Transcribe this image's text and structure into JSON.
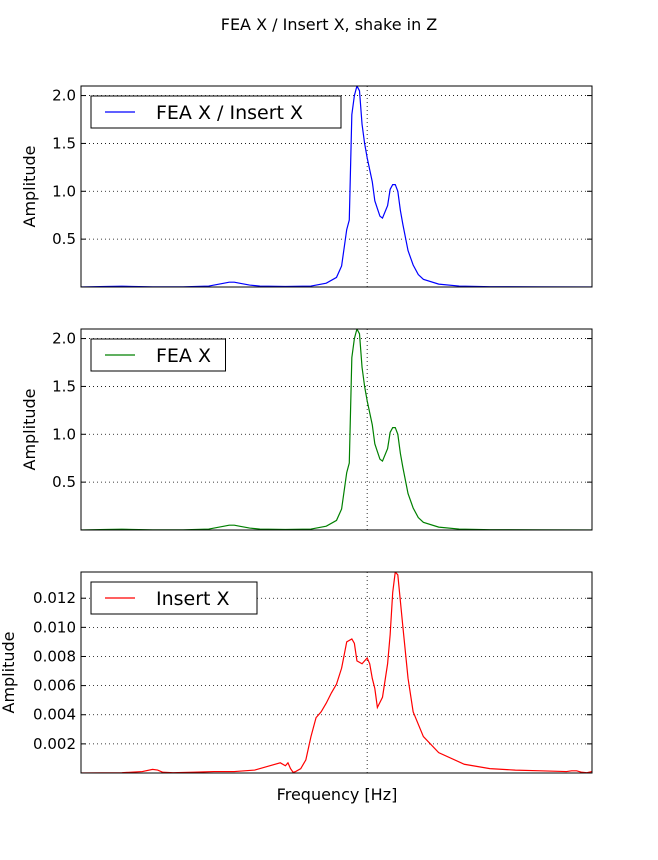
{
  "figure": {
    "title": "FEA X / Insert X, shake in Z",
    "xlabel": "Frequency [Hz]"
  },
  "chart_data": [
    {
      "type": "line",
      "ylabel": "Amplitude",
      "ylim": [
        0,
        2.1
      ],
      "xlim": [
        0,
        1
      ],
      "yticks": [
        0.5,
        1.0,
        1.5,
        2.0
      ],
      "ytick_labels": [
        "0.5",
        "1.0",
        "1.5",
        "2.0"
      ],
      "grid": true,
      "vline_x": 0.56,
      "legend": "top-left",
      "series": [
        {
          "name": "FEA X / Insert X",
          "color": "#0000ff",
          "x": [
            0,
            0.05,
            0.08,
            0.1,
            0.14,
            0.2,
            0.25,
            0.28,
            0.29,
            0.3,
            0.31,
            0.33,
            0.35,
            0.4,
            0.45,
            0.48,
            0.5,
            0.51,
            0.52,
            0.525,
            0.53,
            0.535,
            0.54,
            0.545,
            0.55,
            0.555,
            0.56,
            0.57,
            0.575,
            0.58,
            0.585,
            0.59,
            0.6,
            0.605,
            0.61,
            0.615,
            0.62,
            0.625,
            0.63,
            0.64,
            0.65,
            0.66,
            0.67,
            0.7,
            0.74,
            0.8,
            0.9,
            1.0
          ],
          "values": [
            0,
            0.005,
            0.008,
            0.005,
            0.002,
            0.002,
            0.01,
            0.04,
            0.05,
            0.05,
            0.04,
            0.02,
            0.01,
            0.005,
            0.01,
            0.04,
            0.1,
            0.22,
            0.6,
            0.7,
            1.8,
            2.0,
            2.1,
            2.05,
            1.7,
            1.5,
            1.35,
            1.1,
            0.9,
            0.82,
            0.74,
            0.72,
            0.85,
            1.02,
            1.07,
            1.07,
            1.0,
            0.8,
            0.65,
            0.38,
            0.23,
            0.13,
            0.08,
            0.03,
            0.01,
            0.003,
            0.001,
            0
          ]
        }
      ]
    },
    {
      "type": "line",
      "ylabel": "Amplitude",
      "ylim": [
        0,
        2.1
      ],
      "xlim": [
        0,
        1
      ],
      "yticks": [
        0.5,
        1.0,
        1.5,
        2.0
      ],
      "ytick_labels": [
        "0.5",
        "1.0",
        "1.5",
        "2.0"
      ],
      "grid": true,
      "vline_x": 0.56,
      "legend": "top-left",
      "series": [
        {
          "name": "FEA X",
          "color": "#008000",
          "x": [
            0,
            0.05,
            0.08,
            0.1,
            0.14,
            0.2,
            0.25,
            0.28,
            0.29,
            0.3,
            0.31,
            0.33,
            0.35,
            0.4,
            0.45,
            0.48,
            0.5,
            0.51,
            0.52,
            0.525,
            0.53,
            0.535,
            0.54,
            0.545,
            0.55,
            0.555,
            0.56,
            0.57,
            0.575,
            0.58,
            0.585,
            0.59,
            0.6,
            0.605,
            0.61,
            0.615,
            0.62,
            0.625,
            0.63,
            0.64,
            0.65,
            0.66,
            0.67,
            0.7,
            0.74,
            0.8,
            0.9,
            1.0
          ],
          "values": [
            0,
            0.005,
            0.008,
            0.005,
            0.002,
            0.002,
            0.01,
            0.04,
            0.05,
            0.05,
            0.04,
            0.02,
            0.01,
            0.005,
            0.01,
            0.04,
            0.1,
            0.22,
            0.6,
            0.7,
            1.8,
            2.0,
            2.1,
            2.05,
            1.7,
            1.5,
            1.35,
            1.1,
            0.9,
            0.82,
            0.74,
            0.72,
            0.85,
            1.02,
            1.07,
            1.07,
            1.0,
            0.8,
            0.65,
            0.38,
            0.23,
            0.13,
            0.08,
            0.03,
            0.01,
            0.003,
            0.001,
            0
          ]
        }
      ]
    },
    {
      "type": "line",
      "ylabel": "Amplitude",
      "ylim": [
        0,
        0.0138
      ],
      "xlim": [
        0,
        1
      ],
      "yticks": [
        0.002,
        0.004,
        0.006,
        0.008,
        0.01,
        0.012
      ],
      "ytick_labels": [
        "0.002",
        "0.004",
        "0.006",
        "0.008",
        "0.010",
        "0.012"
      ],
      "grid": true,
      "vline_x": 0.56,
      "legend": "top-left",
      "series": [
        {
          "name": "Insert X",
          "color": "#ff0000",
          "x": [
            0,
            0.08,
            0.12,
            0.14,
            0.15,
            0.16,
            0.18,
            0.22,
            0.26,
            0.3,
            0.34,
            0.37,
            0.39,
            0.4,
            0.405,
            0.41,
            0.415,
            0.42,
            0.43,
            0.44,
            0.45,
            0.46,
            0.47,
            0.48,
            0.49,
            0.5,
            0.51,
            0.52,
            0.53,
            0.535,
            0.54,
            0.55,
            0.555,
            0.56,
            0.565,
            0.57,
            0.575,
            0.58,
            0.59,
            0.6,
            0.605,
            0.61,
            0.615,
            0.62,
            0.63,
            0.64,
            0.65,
            0.67,
            0.7,
            0.75,
            0.8,
            0.85,
            0.9,
            0.95,
            0.96,
            0.97,
            0.98,
            0.99,
            1.0
          ],
          "values": [
            0,
            2e-05,
            0.0001,
            0.00025,
            0.0002,
            5e-05,
            2e-05,
            5e-05,
            0.0001,
            0.0001,
            0.0002,
            0.0005,
            0.0007,
            0.0005,
            0.0007,
            0.0003,
            5e-05,
            0.0001,
            0.0003,
            0.0009,
            0.0025,
            0.0038,
            0.0042,
            0.0048,
            0.0055,
            0.0061,
            0.0072,
            0.009,
            0.0092,
            0.0089,
            0.0077,
            0.0075,
            0.0077,
            0.0079,
            0.0075,
            0.0065,
            0.0058,
            0.0045,
            0.0052,
            0.0075,
            0.0095,
            0.0124,
            0.0138,
            0.0136,
            0.01,
            0.0065,
            0.0042,
            0.0025,
            0.0014,
            0.0006,
            0.0003,
            0.0002,
            0.00015,
            0.0001,
            0.00015,
            0.00015,
            5e-05,
            2e-05,
            0.0001
          ]
        }
      ]
    }
  ]
}
